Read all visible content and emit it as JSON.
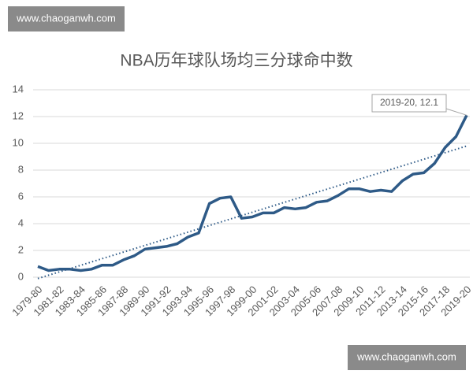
{
  "chart_data": {
    "type": "line",
    "title": "NBA历年球队场均三分球命中数",
    "categories": [
      "1979-80",
      null,
      "1981-82",
      null,
      "1983-84",
      null,
      "1985-86",
      null,
      "1987-88",
      null,
      "1989-90",
      null,
      "1991-92",
      null,
      "1993-94",
      null,
      "1995-96",
      null,
      "1997-98",
      null,
      "1999-00",
      null,
      "2001-02",
      null,
      "2003-04",
      null,
      "2005-06",
      null,
      "2007-08",
      null,
      "2009-10",
      null,
      "2011-12",
      null,
      "2013-14",
      null,
      "2015-16",
      null,
      "2017-18",
      null,
      "2019-20"
    ],
    "values": [
      0.8,
      0.5,
      0.6,
      0.6,
      0.5,
      0.6,
      0.9,
      0.9,
      1.3,
      1.6,
      2.1,
      2.2,
      2.3,
      2.5,
      3.0,
      3.3,
      5.5,
      5.9,
      6.0,
      4.4,
      4.5,
      4.8,
      4.8,
      5.2,
      5.1,
      5.2,
      5.6,
      5.7,
      6.1,
      6.6,
      6.6,
      6.4,
      6.5,
      6.4,
      7.2,
      7.7,
      7.8,
      8.5,
      9.7,
      10.5,
      12.1
    ],
    "color": "#2e5a87",
    "trendline": {
      "start": -0.1,
      "end": 9.8,
      "color": "#2e5a87"
    },
    "annotation": "2019-20, 12.1",
    "ylim": [
      0,
      14
    ],
    "yticks": [
      0,
      2,
      4,
      6,
      8,
      10,
      12,
      14
    ],
    "grid": true
  },
  "watermarks": [
    "www.chaoganwh.com",
    "www.chaoganwh.com"
  ]
}
